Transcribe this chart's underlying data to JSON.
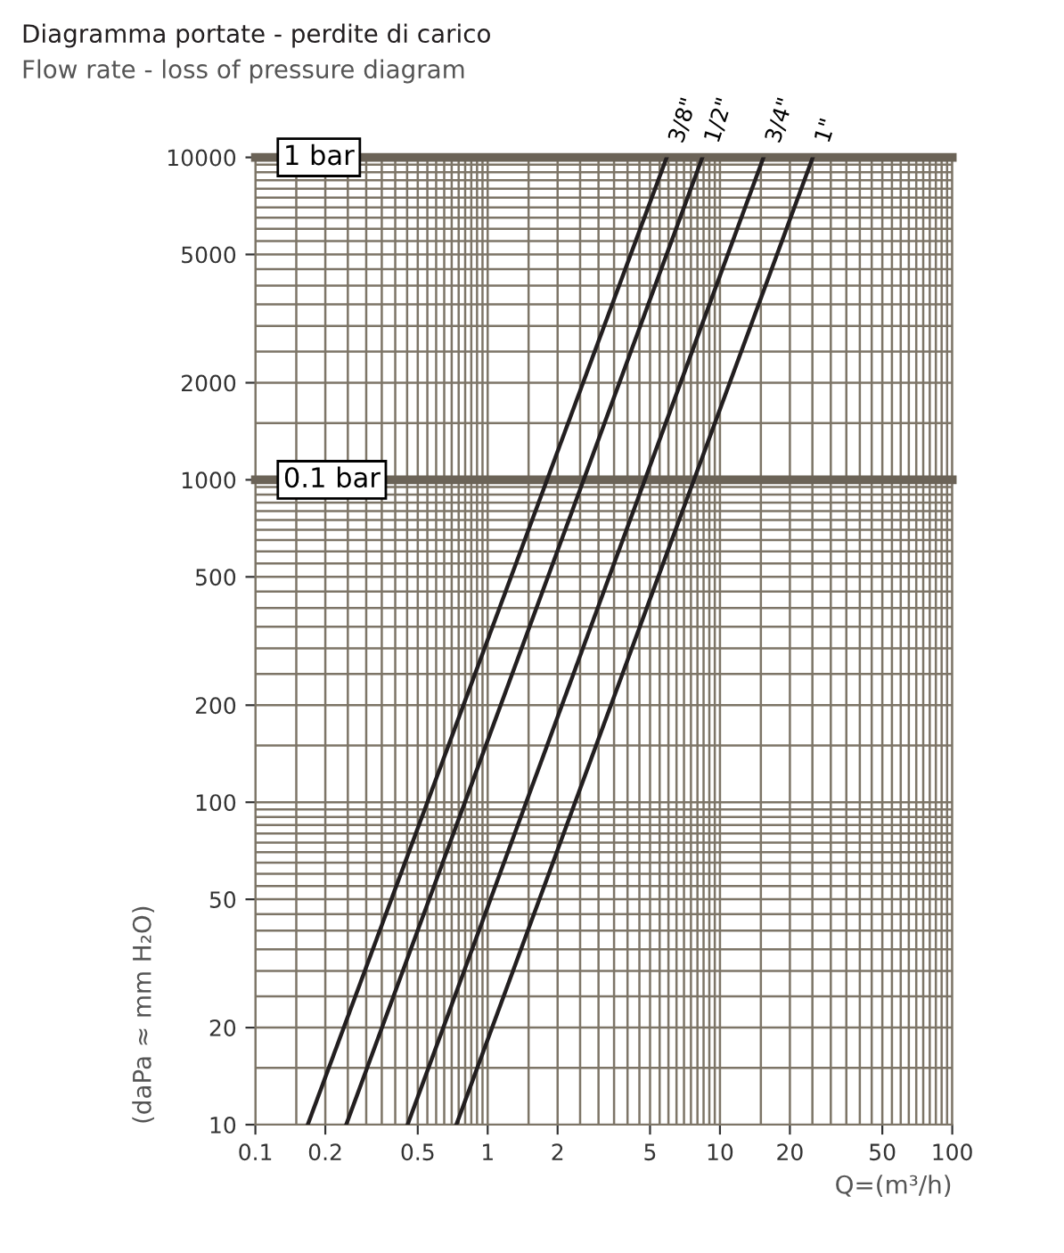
{
  "chart_data": {
    "type": "line",
    "title": "Diagramma portate - perdite di carico",
    "subtitle": "Flow rate - loss of pressure diagram",
    "xlabel": "Q=(m³/h)",
    "ylabel": "(daPa ≈ mm H₂O)",
    "log": "xy",
    "xlim": [
      0.1,
      100
    ],
    "ylim": [
      10,
      10000
    ],
    "xticks": [
      0.1,
      0.2,
      0.5,
      1,
      2,
      5,
      10,
      20,
      50,
      100
    ],
    "yticks": [
      10,
      20,
      50,
      100,
      200,
      500,
      1000,
      2000,
      5000,
      10000
    ],
    "grid": true,
    "marker": "none",
    "line_style": "solid",
    "series": [
      {
        "name": "3/8\"",
        "color": "#231f20",
        "x": [
          0.168,
          5.9
        ],
        "values": [
          10,
          10000
        ]
      },
      {
        "name": "1/2\"",
        "color": "#231f20",
        "x": [
          0.246,
          8.4
        ],
        "values": [
          10,
          10000
        ]
      },
      {
        "name": "3/4\"",
        "color": "#231f20",
        "x": [
          0.452,
          15.4
        ],
        "values": [
          10,
          10000
        ]
      },
      {
        "name": "1\"",
        "color": "#231f20",
        "x": [
          0.733,
          25.1
        ],
        "values": [
          10,
          10000
        ]
      }
    ],
    "ref_lines": [
      {
        "axis": "y",
        "value": 10000,
        "label": "1 bar",
        "color": "#6b6357"
      },
      {
        "axis": "y",
        "value": 1000,
        "label": "0.1 bar",
        "color": "#6b6357"
      }
    ]
  }
}
